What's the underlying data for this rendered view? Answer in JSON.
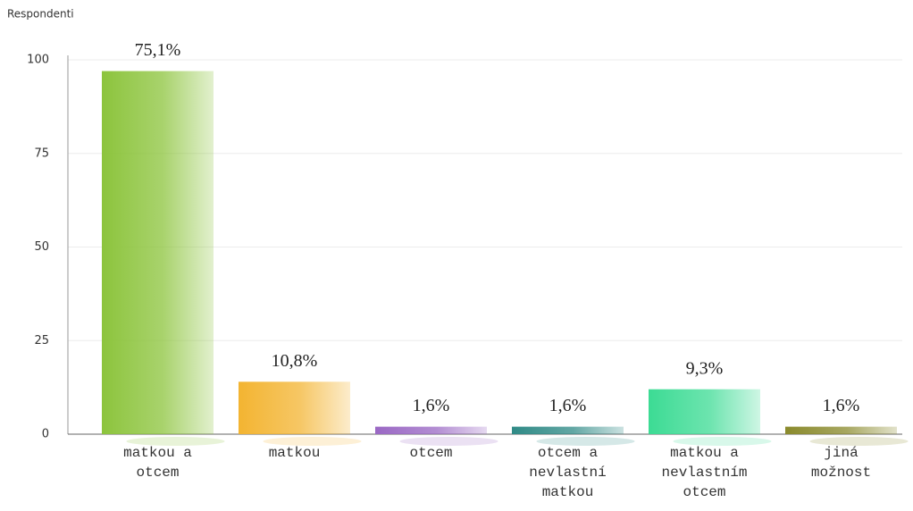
{
  "chart_data": {
    "type": "bar",
    "y_label": "Respondenti",
    "categories": [
      "matkou a otcem",
      "matkou",
      "otcem",
      "otcem a nevlastní matkou",
      "matkou a nevlastním otcem",
      "jiná možnost"
    ],
    "values": [
      97,
      14,
      2,
      2,
      12,
      2
    ],
    "annotations": [
      "75,1%",
      "10,8%",
      "1,6%",
      "1,6%",
      "9,3%",
      "1,6%"
    ],
    "colors": [
      "#8cc43c",
      "#f3b431",
      "#9a68c4",
      "#2f8a86",
      "#3cdb94",
      "#8a8a2c"
    ],
    "ylim": [
      0,
      100
    ],
    "yticks": [
      0,
      25,
      50,
      75,
      100
    ],
    "grid": true
  }
}
